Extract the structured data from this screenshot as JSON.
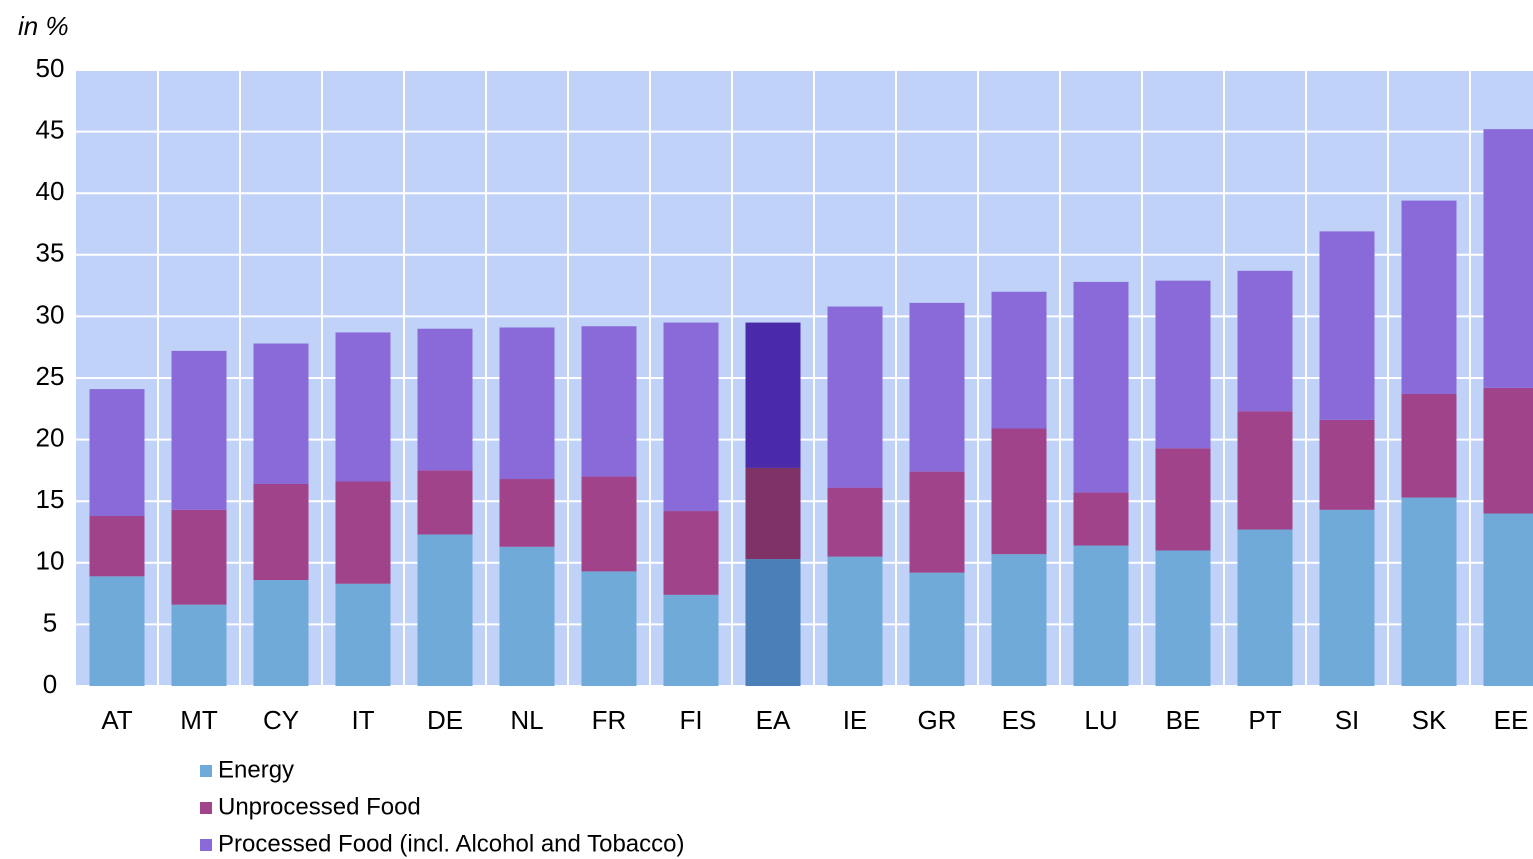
{
  "chart_data": {
    "type": "stacked_bar",
    "y_label": "in %",
    "categories": [
      "AT",
      "MT",
      "CY",
      "IT",
      "DE",
      "NL",
      "FR",
      "FI",
      "EA",
      "IE",
      "GR",
      "ES",
      "LU",
      "BE",
      "PT",
      "SI",
      "SK",
      "EE"
    ],
    "highlight": "EA",
    "series": [
      {
        "name": "Energy",
        "color": "#70aad8",
        "highlight_color": "#4b7fb8",
        "values": [
          8.9,
          6.6,
          8.6,
          8.3,
          12.3,
          11.3,
          9.3,
          7.4,
          10.3,
          10.5,
          9.2,
          10.7,
          11.4,
          11.0,
          12.7,
          14.3,
          15.3,
          14.0
        ]
      },
      {
        "name": "Unprocessed Food",
        "color": "#a0438a",
        "highlight_color": "#7e3266",
        "values": [
          4.9,
          7.7,
          7.8,
          8.3,
          5.2,
          5.5,
          7.7,
          6.8,
          7.4,
          5.6,
          8.2,
          10.2,
          4.3,
          8.3,
          9.6,
          7.3,
          8.4,
          10.2
        ]
      },
      {
        "name": "Processed Food (incl. Alcohol and Tobacco)",
        "color": "#8a6ad8",
        "highlight_color": "#4b2aaa",
        "values": [
          10.3,
          12.9,
          11.4,
          12.1,
          11.5,
          12.3,
          12.2,
          15.3,
          11.8,
          14.7,
          13.7,
          11.1,
          17.1,
          13.6,
          11.4,
          15.3,
          15.7,
          21.0
        ]
      }
    ],
    "ylim": [
      0,
      50
    ],
    "yticks": [
      0,
      5,
      10,
      15,
      20,
      25,
      30,
      35,
      40,
      45,
      50
    ],
    "grid": true
  }
}
